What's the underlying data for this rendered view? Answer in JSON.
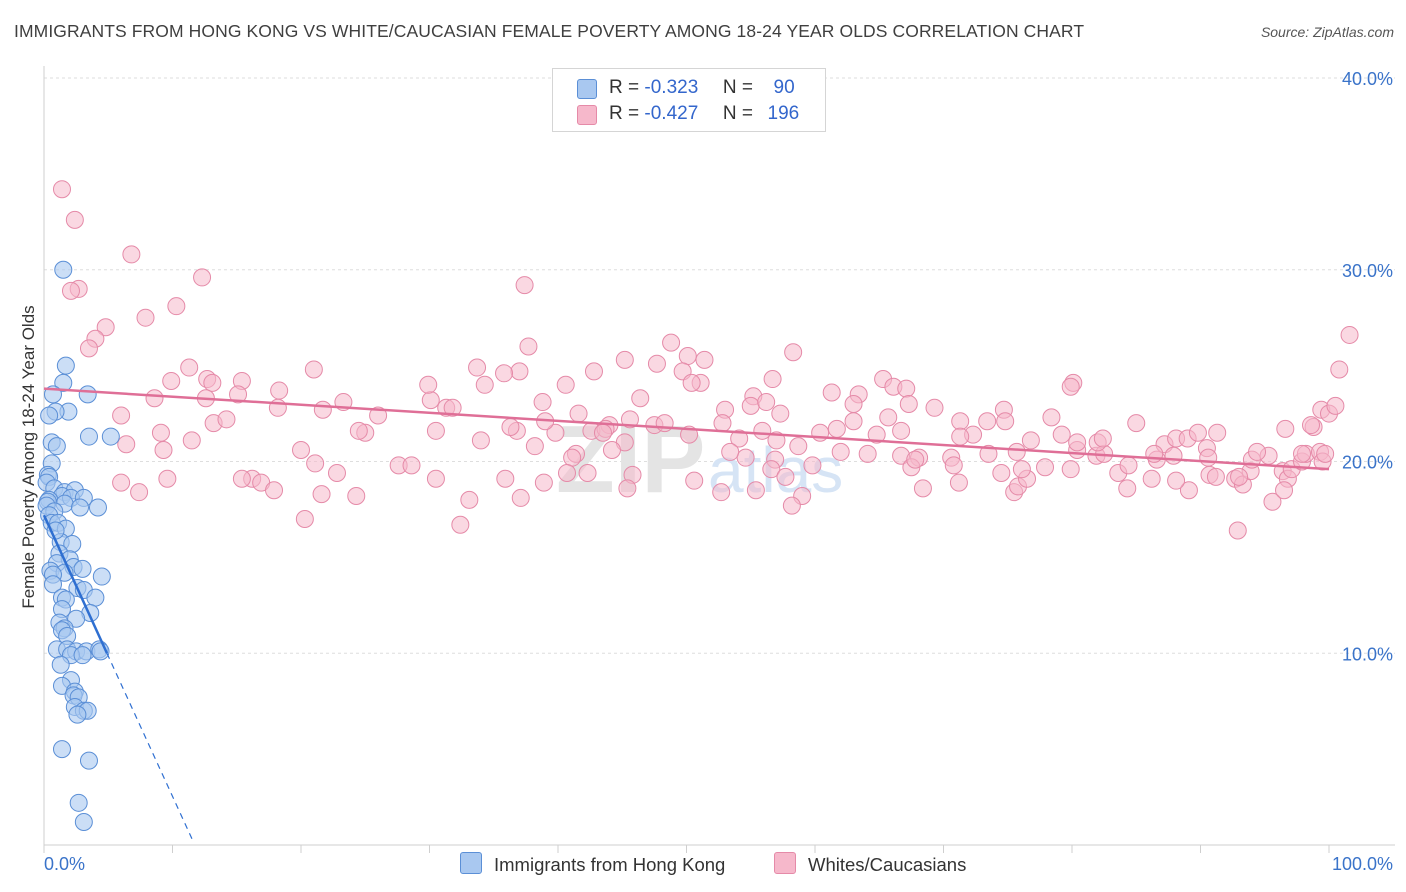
{
  "title": "IMMIGRANTS FROM HONG KONG VS WHITE/CAUCASIAN FEMALE POVERTY AMONG 18-24 YEAR OLDS CORRELATION CHART",
  "source": "Source: ZipAtlas.com",
  "watermark": {
    "part1": "ZIP",
    "part2": "atlas"
  },
  "legend": {
    "rows": [
      {
        "r_label": "R =",
        "r_value": "-0.323",
        "n_label": "N =",
        "n_value": "90"
      },
      {
        "r_label": "R =",
        "r_value": "-0.427",
        "n_label": "N =",
        "n_value": "196"
      }
    ]
  },
  "bottom_legend": {
    "series1": "Immigrants from Hong Kong",
    "series2": "Whites/Caucasians"
  },
  "colors": {
    "blue_fill": "#a9c8f0",
    "blue_stroke": "#5b8fd6",
    "blue_line": "#2f6fd1",
    "pink_fill": "#f6b8cb",
    "pink_stroke": "#e58aa8",
    "pink_line": "#df6f97",
    "tick_label": "#3a73c9",
    "grid": "#dedede"
  },
  "chart_data": {
    "type": "scatter",
    "title": "IMMIGRANTS FROM HONG KONG VS WHITE/CAUCASIAN FEMALE POVERTY AMONG 18-24 YEAR OLDS CORRELATION CHART",
    "xlabel": "",
    "ylabel": "Female Poverty Among 18-24 Year Olds",
    "xlim": [
      0,
      100
    ],
    "ylim": [
      0,
      40
    ],
    "x_tick_labels": [
      "0.0%",
      "100.0%"
    ],
    "y_ticks": [
      10,
      20,
      30,
      40
    ],
    "y_tick_labels": [
      "10.0%",
      "20.0%",
      "30.0%",
      "40.0%"
    ],
    "grid": true,
    "series": [
      {
        "name": "Immigrants from Hong Kong",
        "trend": {
          "x0": 0.0,
          "y0": 17.2,
          "x1": 4.9,
          "y1": 10.0,
          "dash_x_end": 11.6,
          "dash_y_end": 0.2
        },
        "points": [
          [
            1.5,
            30.0
          ],
          [
            1.7,
            25.0
          ],
          [
            1.5,
            24.1
          ],
          [
            0.7,
            23.5
          ],
          [
            3.4,
            23.5
          ],
          [
            1.9,
            22.6
          ],
          [
            0.9,
            22.6
          ],
          [
            0.4,
            22.4
          ],
          [
            3.5,
            21.3
          ],
          [
            5.2,
            21.3
          ],
          [
            0.6,
            21.0
          ],
          [
            1.0,
            20.8
          ],
          [
            0.6,
            19.9
          ],
          [
            0.3,
            19.3
          ],
          [
            0.4,
            19.2
          ],
          [
            0.2,
            18.9
          ],
          [
            0.8,
            18.6
          ],
          [
            1.6,
            18.4
          ],
          [
            2.4,
            18.5
          ],
          [
            1.4,
            18.2
          ],
          [
            2.1,
            18.1
          ],
          [
            3.1,
            18.1
          ],
          [
            0.4,
            18.0
          ],
          [
            0.3,
            17.9
          ],
          [
            1.6,
            17.8
          ],
          [
            0.2,
            17.7
          ],
          [
            2.8,
            17.6
          ],
          [
            4.2,
            17.6
          ],
          [
            0.8,
            17.4
          ],
          [
            0.4,
            17.2
          ],
          [
            0.6,
            16.8
          ],
          [
            1.1,
            16.8
          ],
          [
            1.7,
            16.5
          ],
          [
            1.3,
            15.8
          ],
          [
            2.2,
            15.7
          ],
          [
            1.2,
            15.2
          ],
          [
            2.0,
            14.9
          ],
          [
            1.0,
            14.7
          ],
          [
            2.3,
            14.5
          ],
          [
            0.5,
            14.3
          ],
          [
            1.6,
            14.2
          ],
          [
            0.7,
            14.1
          ],
          [
            3.0,
            14.4
          ],
          [
            4.5,
            14.0
          ],
          [
            0.7,
            13.6
          ],
          [
            2.6,
            13.4
          ],
          [
            3.1,
            13.3
          ],
          [
            1.4,
            12.9
          ],
          [
            1.7,
            12.8
          ],
          [
            4.0,
            12.9
          ],
          [
            1.4,
            12.3
          ],
          [
            3.6,
            12.1
          ],
          [
            2.5,
            11.8
          ],
          [
            1.2,
            11.6
          ],
          [
            1.6,
            11.3
          ],
          [
            1.4,
            11.2
          ],
          [
            1.8,
            10.9
          ],
          [
            1.0,
            10.2
          ],
          [
            1.8,
            10.2
          ],
          [
            2.5,
            10.1
          ],
          [
            3.3,
            10.1
          ],
          [
            4.3,
            10.2
          ],
          [
            4.4,
            10.1
          ],
          [
            2.1,
            9.9
          ],
          [
            3.0,
            9.9
          ],
          [
            1.3,
            9.4
          ],
          [
            2.1,
            8.6
          ],
          [
            1.4,
            8.3
          ],
          [
            2.4,
            8.0
          ],
          [
            2.3,
            7.8
          ],
          [
            2.7,
            7.7
          ],
          [
            2.4,
            7.2
          ],
          [
            3.1,
            7.0
          ],
          [
            3.4,
            7.0
          ],
          [
            2.6,
            6.8
          ],
          [
            1.4,
            5.0
          ],
          [
            3.5,
            4.4
          ],
          [
            2.7,
            2.2
          ],
          [
            3.1,
            1.2
          ],
          [
            0.9,
            16.4
          ]
        ]
      },
      {
        "name": "Whites/Caucasians",
        "trend": {
          "x0": 0.0,
          "y0": 23.8,
          "x1": 100.0,
          "y1": 19.6
        },
        "points": [
          [
            1.4,
            34.2
          ],
          [
            2.4,
            32.6
          ],
          [
            6.8,
            30.8
          ],
          [
            12.3,
            29.6
          ],
          [
            2.7,
            29.0
          ],
          [
            2.1,
            28.9
          ],
          [
            10.3,
            28.1
          ],
          [
            7.9,
            27.5
          ],
          [
            4.8,
            27.0
          ],
          [
            4.0,
            26.4
          ],
          [
            3.5,
            25.9
          ],
          [
            11.3,
            24.9
          ],
          [
            12.7,
            24.3
          ],
          [
            9.9,
            24.2
          ],
          [
            13.1,
            24.1
          ],
          [
            15.4,
            24.2
          ],
          [
            18.3,
            23.7
          ],
          [
            15.1,
            23.5
          ],
          [
            12.6,
            23.3
          ],
          [
            18.2,
            22.8
          ],
          [
            8.6,
            23.3
          ],
          [
            6.0,
            22.4
          ],
          [
            13.2,
            22.0
          ],
          [
            14.2,
            22.2
          ],
          [
            21.7,
            22.7
          ],
          [
            26.0,
            22.4
          ],
          [
            31.3,
            22.8
          ],
          [
            25.0,
            21.5
          ],
          [
            24.5,
            21.6
          ],
          [
            9.1,
            21.5
          ],
          [
            11.5,
            21.1
          ],
          [
            9.3,
            20.6
          ],
          [
            20.0,
            20.6
          ],
          [
            6.4,
            20.9
          ],
          [
            16.2,
            19.1
          ],
          [
            22.8,
            19.4
          ],
          [
            21.1,
            19.9
          ],
          [
            16.9,
            18.9
          ],
          [
            30.5,
            19.1
          ],
          [
            27.6,
            19.8
          ],
          [
            6.0,
            18.9
          ],
          [
            15.4,
            19.1
          ],
          [
            9.6,
            19.1
          ],
          [
            7.4,
            18.4
          ],
          [
            17.9,
            18.5
          ],
          [
            21.6,
            18.3
          ],
          [
            24.3,
            18.2
          ],
          [
            33.1,
            18.0
          ],
          [
            20.3,
            17.0
          ],
          [
            32.4,
            16.7
          ],
          [
            33.7,
            24.9
          ],
          [
            37.0,
            24.7
          ],
          [
            34.3,
            24.0
          ],
          [
            35.8,
            24.6
          ],
          [
            38.8,
            23.1
          ],
          [
            30.1,
            23.2
          ],
          [
            31.8,
            22.8
          ],
          [
            30.5,
            21.6
          ],
          [
            36.8,
            21.6
          ],
          [
            34.0,
            21.1
          ],
          [
            36.3,
            21.8
          ],
          [
            39.8,
            21.5
          ],
          [
            38.2,
            20.8
          ],
          [
            41.6,
            22.5
          ],
          [
            42.6,
            21.6
          ],
          [
            41.4,
            20.4
          ],
          [
            44.0,
            21.9
          ],
          [
            43.7,
            21.7
          ],
          [
            41.1,
            20.2
          ],
          [
            45.6,
            22.2
          ],
          [
            46.4,
            23.3
          ],
          [
            43.5,
            21.5
          ],
          [
            45.8,
            19.3
          ],
          [
            45.4,
            18.6
          ],
          [
            40.7,
            19.4
          ],
          [
            42.3,
            19.4
          ],
          [
            38.9,
            18.9
          ],
          [
            37.1,
            18.1
          ],
          [
            35.9,
            19.1
          ],
          [
            47.5,
            21.9
          ],
          [
            37.7,
            26.0
          ],
          [
            37.4,
            29.2
          ],
          [
            45.2,
            25.3
          ],
          [
            48.8,
            26.2
          ],
          [
            50.1,
            25.5
          ],
          [
            51.4,
            25.3
          ],
          [
            49.7,
            24.7
          ],
          [
            51.1,
            24.1
          ],
          [
            50.4,
            24.1
          ],
          [
            53.0,
            22.7
          ],
          [
            47.7,
            25.1
          ],
          [
            55.2,
            23.4
          ],
          [
            55.0,
            22.9
          ],
          [
            57.3,
            22.5
          ],
          [
            55.9,
            21.6
          ],
          [
            52.8,
            22.0
          ],
          [
            50.2,
            21.4
          ],
          [
            54.1,
            21.2
          ],
          [
            57.0,
            21.1
          ],
          [
            58.7,
            20.8
          ],
          [
            62.0,
            20.5
          ],
          [
            56.9,
            20.1
          ],
          [
            60.4,
            21.5
          ],
          [
            61.7,
            21.7
          ],
          [
            58.3,
            25.7
          ],
          [
            56.7,
            24.3
          ],
          [
            61.3,
            23.6
          ],
          [
            63.4,
            23.5
          ],
          [
            56.6,
            19.6
          ],
          [
            54.6,
            20.2
          ],
          [
            53.4,
            20.5
          ],
          [
            52.7,
            18.4
          ],
          [
            55.4,
            18.5
          ],
          [
            59.0,
            18.2
          ],
          [
            50.6,
            19.0
          ],
          [
            58.2,
            17.7
          ],
          [
            65.3,
            24.3
          ],
          [
            66.1,
            23.9
          ],
          [
            67.1,
            23.8
          ],
          [
            67.3,
            23.0
          ],
          [
            63.0,
            23.0
          ],
          [
            65.7,
            22.3
          ],
          [
            66.7,
            21.6
          ],
          [
            64.8,
            21.4
          ],
          [
            66.7,
            20.3
          ],
          [
            69.3,
            22.8
          ],
          [
            71.3,
            22.1
          ],
          [
            72.3,
            21.4
          ],
          [
            73.4,
            22.1
          ],
          [
            74.7,
            22.7
          ],
          [
            78.4,
            22.3
          ],
          [
            80.1,
            24.1
          ],
          [
            79.9,
            23.9
          ],
          [
            75.7,
            20.5
          ],
          [
            76.8,
            21.1
          ],
          [
            70.6,
            20.2
          ],
          [
            68.1,
            20.2
          ],
          [
            67.5,
            19.7
          ],
          [
            70.8,
            19.8
          ],
          [
            71.3,
            21.3
          ],
          [
            73.5,
            20.4
          ],
          [
            74.5,
            19.4
          ],
          [
            75.5,
            18.4
          ],
          [
            75.8,
            18.7
          ],
          [
            77.9,
            19.7
          ],
          [
            79.9,
            19.6
          ],
          [
            80.4,
            20.6
          ],
          [
            81.9,
            20.3
          ],
          [
            82.5,
            20.4
          ],
          [
            83.6,
            19.4
          ],
          [
            79.2,
            21.4
          ],
          [
            80.4,
            21.0
          ],
          [
            82.0,
            21.0
          ],
          [
            85.0,
            22.0
          ],
          [
            84.3,
            18.6
          ],
          [
            84.4,
            19.8
          ],
          [
            86.6,
            20.1
          ],
          [
            87.2,
            20.9
          ],
          [
            86.2,
            19.1
          ],
          [
            87.9,
            20.3
          ],
          [
            89.1,
            18.5
          ],
          [
            90.7,
            19.3
          ],
          [
            91.2,
            19.2
          ],
          [
            92.7,
            19.1
          ],
          [
            93.3,
            18.8
          ],
          [
            93.9,
            19.5
          ],
          [
            93.0,
            19.2
          ],
          [
            95.3,
            20.3
          ],
          [
            95.6,
            17.9
          ],
          [
            96.4,
            19.5
          ],
          [
            96.8,
            19.1
          ],
          [
            97.1,
            19.6
          ],
          [
            97.9,
            20.0
          ],
          [
            98.2,
            20.4
          ],
          [
            99.3,
            20.5
          ],
          [
            99.5,
            20.0
          ],
          [
            98.8,
            21.8
          ],
          [
            99.4,
            22.7
          ],
          [
            100.0,
            22.5
          ],
          [
            96.5,
            18.5
          ],
          [
            88.1,
            21.2
          ],
          [
            89.0,
            21.2
          ],
          [
            90.5,
            20.7
          ],
          [
            91.3,
            21.5
          ],
          [
            92.9,
            16.4
          ],
          [
            94.0,
            20.1
          ],
          [
            96.6,
            21.7
          ],
          [
            97.9,
            20.4
          ],
          [
            99.7,
            20.4
          ],
          [
            76.5,
            19.1
          ],
          [
            82.4,
            21.2
          ],
          [
            86.4,
            20.4
          ],
          [
            88.1,
            19.0
          ],
          [
            89.8,
            21.5
          ],
          [
            90.6,
            20.2
          ],
          [
            94.4,
            20.5
          ],
          [
            98.6,
            21.9
          ],
          [
            100.8,
            24.8
          ],
          [
            101.6,
            26.6
          ],
          [
            100.5,
            22.9
          ],
          [
            56.2,
            23.1
          ],
          [
            57.7,
            19.2
          ],
          [
            59.8,
            19.8
          ],
          [
            45.2,
            21.0
          ],
          [
            23.3,
            23.1
          ],
          [
            21.0,
            24.8
          ],
          [
            40.6,
            24.0
          ],
          [
            39.0,
            22.1
          ],
          [
            42.8,
            24.7
          ],
          [
            48.3,
            22.0
          ],
          [
            44.2,
            20.6
          ],
          [
            28.6,
            19.8
          ],
          [
            29.9,
            24.0
          ],
          [
            64.1,
            20.4
          ],
          [
            68.4,
            18.6
          ],
          [
            71.2,
            18.9
          ],
          [
            74.8,
            22.1
          ],
          [
            63.0,
            22.1
          ],
          [
            67.8,
            20.1
          ],
          [
            76.1,
            19.6
          ]
        ]
      }
    ]
  },
  "axes": {
    "ylabel": "Female Poverty Among 18-24 Year Olds",
    "x_left": "0.0%",
    "x_right": "100.0%"
  }
}
